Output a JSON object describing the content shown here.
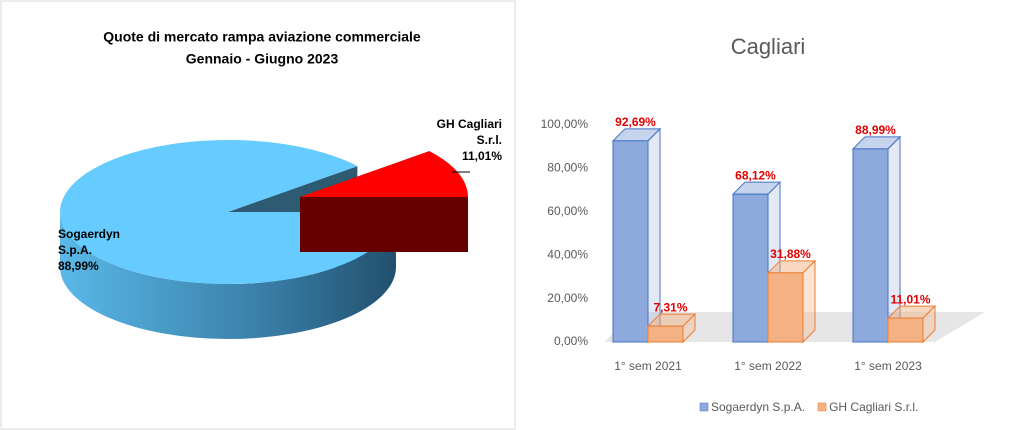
{
  "chart_data": [
    {
      "type": "pie",
      "title": "Quote di mercato rampa aviazione commerciale",
      "subtitle": "Gennaio - Giugno 2023",
      "categories": [
        "Sogaerdyn S.p.A.",
        "GH Cagliari S.r.l."
      ],
      "values": [
        88.99,
        11.01
      ],
      "value_labels": [
        "88,99%",
        "11,01%"
      ],
      "colors": [
        "#66ccff",
        "#ff0000"
      ]
    },
    {
      "type": "bar",
      "title": "Cagliari",
      "categories": [
        "1° sem 2021",
        "1° sem 2022",
        "1° sem 2023"
      ],
      "series": [
        {
          "name": "Sogaerdyn S.p.A.",
          "color": "#8eaadc",
          "values": [
            92.69,
            68.12,
            88.99
          ],
          "value_labels": [
            "92,69%",
            "68,12%",
            "88,99%"
          ]
        },
        {
          "name": "GH Cagliari S.r.l.",
          "color": "#f4b183",
          "values": [
            7.31,
            31.88,
            11.01
          ],
          "value_labels": [
            "7,31%",
            "31,88%",
            "11,01%"
          ]
        }
      ],
      "ylim": [
        0,
        100
      ],
      "yticks": [
        {
          "value": 0,
          "label": "0,00%"
        },
        {
          "value": 20,
          "label": "20,00%"
        },
        {
          "value": 40,
          "label": "40,00%"
        },
        {
          "value": 60,
          "label": "60,00%"
        },
        {
          "value": 80,
          "label": "80,00%"
        },
        {
          "value": 100,
          "label": "100,00%"
        }
      ],
      "legend": "bottom"
    }
  ]
}
